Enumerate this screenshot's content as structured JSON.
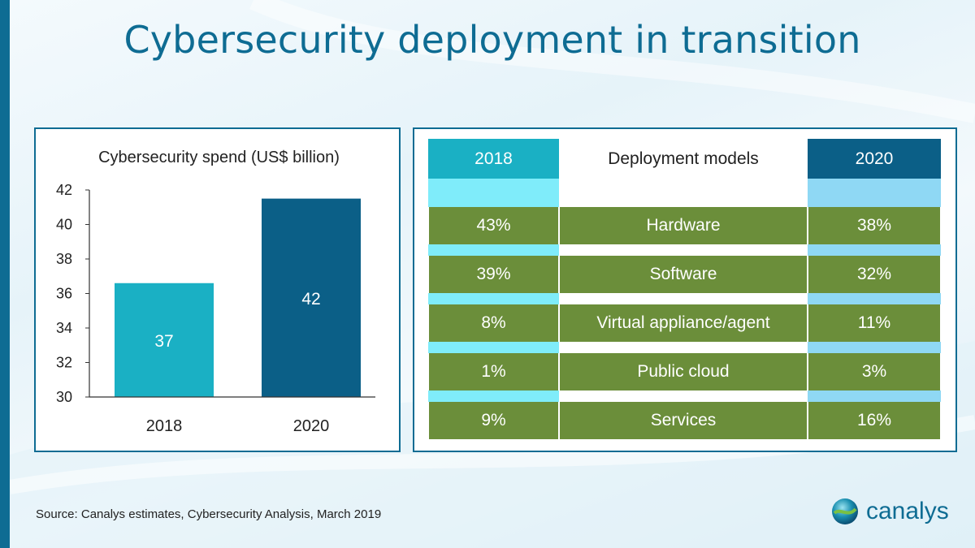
{
  "title": "Cybersecurity deployment in transition",
  "chart_data": {
    "type": "bar",
    "title": "Cybersecurity spend (US$ billion)",
    "categories": [
      "2018",
      "2020"
    ],
    "values": [
      36.6,
      41.5
    ],
    "data_labels": [
      "37",
      "42"
    ],
    "ylim": [
      30,
      42
    ],
    "yticks": [
      30,
      32,
      34,
      36,
      38,
      40,
      42
    ],
    "xlabel": "",
    "ylabel": "",
    "grid": false,
    "bar_colors": [
      "#1ab0c4",
      "#0b5f87"
    ]
  },
  "table": {
    "header": {
      "left": "2018",
      "middle": "Deployment models",
      "right": "2020"
    },
    "rows": [
      {
        "model": "Hardware",
        "y2018": "43%",
        "y2020": "38%"
      },
      {
        "model": "Software",
        "y2018": "39%",
        "y2020": "32%"
      },
      {
        "model": "Virtual appliance/agent",
        "y2018": "8%",
        "y2020": "11%"
      },
      {
        "model": "Public cloud",
        "y2018": "1%",
        "y2020": "3%"
      },
      {
        "model": "Services",
        "y2018": "9%",
        "y2020": "16%"
      }
    ]
  },
  "source": "Source:  Canalys estimates, Cybersecurity Analysis, March 2019",
  "logo": {
    "text": "canalys",
    "icon": "globe-icon"
  },
  "colors": {
    "accent": "#0e6c93",
    "bar2018": "#1ab0c4",
    "bar2020": "#0b5f87",
    "green": "#6b8e3a",
    "light_cyan": "#7fecfa",
    "light_blue": "#8fd8f4"
  }
}
